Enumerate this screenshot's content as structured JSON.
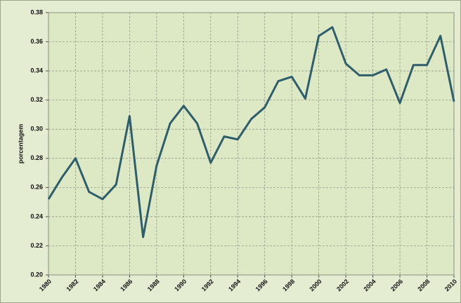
{
  "chart_data": {
    "type": "line",
    "y_label": "porcentagem",
    "x": [
      1980,
      1981,
      1982,
      1983,
      1984,
      1985,
      1986,
      1987,
      1988,
      1989,
      1990,
      1991,
      1992,
      1993,
      1994,
      1995,
      1996,
      1997,
      1998,
      1999,
      2000,
      2001,
      2002,
      2003,
      2004,
      2005,
      2006,
      2007,
      2008,
      2009,
      2010
    ],
    "series": [
      {
        "color": "#2e5e6c",
        "values": [
          0.252,
          0.267,
          0.28,
          0.257,
          0.252,
          0.262,
          0.309,
          0.226,
          0.275,
          0.304,
          0.316,
          0.304,
          0.277,
          0.295,
          0.293,
          0.307,
          0.315,
          0.333,
          0.336,
          0.321,
          0.364,
          0.37,
          0.345,
          0.337,
          0.337,
          0.341,
          0.318,
          0.344,
          0.344,
          0.364,
          0.319
        ]
      }
    ],
    "xlim": [
      1980,
      2010
    ],
    "xticks": [
      1980,
      1982,
      1984,
      1986,
      1988,
      1990,
      1992,
      1994,
      1996,
      1998,
      2000,
      2002,
      2004,
      2006,
      2008,
      2010
    ],
    "ylim": [
      0.2,
      0.38
    ],
    "yticks": [
      {
        "value": 0.2,
        "label": "0.20"
      },
      0.22,
      0.24,
      0.26,
      0.28,
      {
        "value": 0.3,
        "label": "0.30"
      },
      0.32,
      0.34,
      0.36,
      0.38
    ],
    "grid": true
  }
}
